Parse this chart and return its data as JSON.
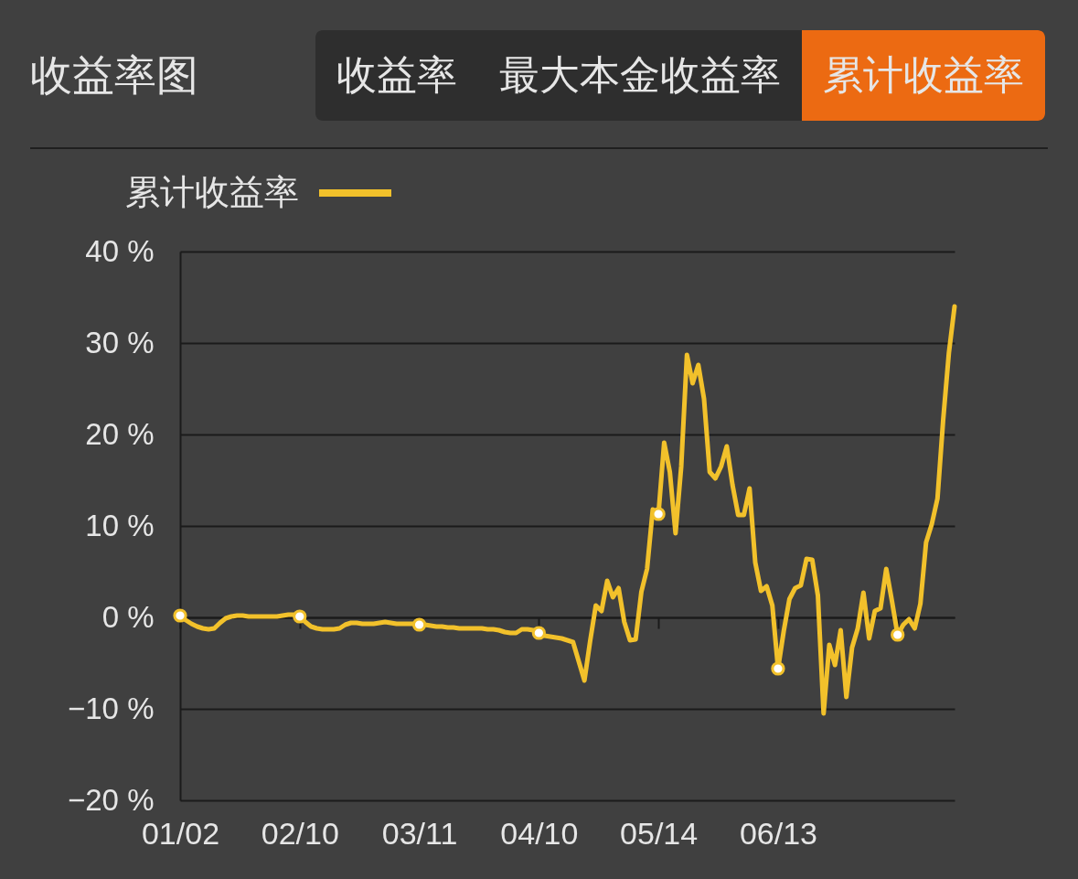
{
  "chart_data": {
    "type": "line",
    "title": "收益率图",
    "annotations": [
      "收益率",
      "最大本金收益率",
      "累计收益率"
    ],
    "categories": [
      "01/02",
      null,
      null,
      null,
      null,
      null,
      null,
      null,
      null,
      null,
      null,
      null,
      null,
      null,
      null,
      null,
      null,
      null,
      null,
      null,
      null,
      "02/10",
      null,
      null,
      null,
      null,
      null,
      null,
      null,
      null,
      null,
      null,
      null,
      null,
      null,
      null,
      null,
      null,
      null,
      null,
      null,
      null,
      "03/11",
      null,
      null,
      null,
      null,
      null,
      null,
      null,
      null,
      null,
      null,
      null,
      null,
      null,
      null,
      null,
      null,
      null,
      null,
      null,
      null,
      "04/10",
      null,
      null,
      null,
      null,
      null,
      null,
      null,
      null,
      null,
      null,
      null,
      null,
      null,
      null,
      null,
      null,
      null,
      null,
      null,
      null,
      "05/14",
      null,
      null,
      null,
      null,
      null,
      null,
      null,
      null,
      null,
      null,
      null,
      null,
      null,
      null,
      null,
      null,
      null,
      null,
      null,
      null,
      "06/13",
      null,
      null,
      null,
      null,
      null,
      null,
      null,
      null,
      null,
      null,
      null,
      null,
      null,
      null,
      null,
      null,
      null,
      null,
      null,
      null,
      null,
      null,
      null,
      null,
      null,
      null,
      null,
      null,
      null,
      null,
      null
    ],
    "series": [
      {
        "name": "累计收益率",
        "color": "#f2c12b",
        "values": [
          0.2,
          -0.3,
          -0.7,
          -1.0,
          -1.2,
          -1.3,
          -1.2,
          -0.6,
          -0.1,
          0.1,
          0.2,
          0.2,
          0.1,
          0.1,
          0.1,
          0.1,
          0.1,
          0.1,
          0.2,
          0.3,
          0.3,
          0.1,
          -0.5,
          -1.0,
          -1.2,
          -1.3,
          -1.3,
          -1.3,
          -1.2,
          -0.8,
          -0.6,
          -0.6,
          -0.7,
          -0.7,
          -0.7,
          -0.6,
          -0.5,
          -0.6,
          -0.7,
          -0.7,
          -0.7,
          -0.7,
          -0.8,
          -0.8,
          -0.9,
          -1.0,
          -1.0,
          -1.1,
          -1.1,
          -1.2,
          -1.2,
          -1.2,
          -1.2,
          -1.2,
          -1.3,
          -1.3,
          -1.4,
          -1.6,
          -1.7,
          -1.7,
          -1.3,
          -1.3,
          -1.4,
          -1.7,
          -2.0,
          -2.1,
          -2.2,
          -2.3,
          -2.5,
          -2.7,
          -4.8,
          -6.9,
          -2.6,
          1.3,
          0.7,
          4.0,
          2.2,
          3.2,
          -0.5,
          -2.5,
          -2.4,
          2.8,
          5.3,
          11.8,
          11.3,
          19.1,
          15.9,
          9.2,
          16.5,
          28.7,
          25.6,
          27.6,
          23.9,
          15.9,
          15.2,
          16.5,
          18.7,
          14.5,
          11.2,
          11.2,
          14.1,
          6.0,
          2.9,
          3.4,
          1.3,
          -5.6,
          -1.5,
          2.0,
          3.2,
          3.5,
          6.4,
          6.3,
          2.4,
          -10.5,
          -3.0,
          -5.2,
          -1.4,
          -8.7,
          -3.3,
          -1.2,
          2.7,
          -2.3,
          0.7,
          1.0,
          5.3,
          1.8,
          -1.9,
          -0.8,
          -0.2,
          -1.2,
          1.5,
          8.2,
          10.2,
          13.0,
          21.6,
          28.9,
          34.0
        ]
      },
      {
        "type": "scatter",
        "color": "#ffffff",
        "values": [
          0.2,
          null,
          null,
          null,
          null,
          null,
          null,
          null,
          null,
          null,
          null,
          null,
          null,
          null,
          null,
          null,
          null,
          null,
          null,
          null,
          null,
          0.1,
          null,
          null,
          null,
          null,
          null,
          null,
          null,
          null,
          null,
          null,
          null,
          null,
          null,
          null,
          null,
          null,
          null,
          null,
          null,
          null,
          -0.8,
          null,
          null,
          null,
          null,
          null,
          null,
          null,
          null,
          null,
          null,
          null,
          null,
          null,
          null,
          null,
          null,
          null,
          null,
          null,
          null,
          -1.7,
          null,
          null,
          null,
          null,
          null,
          null,
          null,
          null,
          null,
          null,
          null,
          null,
          null,
          null,
          null,
          null,
          null,
          null,
          null,
          null,
          11.3,
          null,
          null,
          null,
          null,
          null,
          null,
          null,
          null,
          null,
          null,
          null,
          null,
          null,
          null,
          null,
          null,
          null,
          null,
          null,
          null,
          -5.6,
          null,
          null,
          null,
          null,
          null,
          null,
          null,
          null,
          null,
          null,
          null,
          null,
          null,
          null,
          null,
          null,
          null,
          null,
          null,
          null,
          -1.9,
          null,
          null,
          null,
          null,
          null,
          null,
          null,
          null,
          null,
          null
        ]
      }
    ],
    "ylim": [
      -20,
      40
    ],
    "yticks": [
      {
        "value": -20,
        "label": "−20 %"
      },
      {
        "value": -10,
        "label": "−10 %"
      },
      {
        "value": 0,
        "label": "0 %"
      },
      {
        "value": 10,
        "label": "10 %"
      },
      {
        "value": 20,
        "label": "20 %"
      },
      {
        "value": 30,
        "label": "30 %"
      },
      {
        "value": 40,
        "label": "40 %"
      }
    ],
    "grid": "y",
    "legend": "top left",
    "line_style": "solid"
  }
}
